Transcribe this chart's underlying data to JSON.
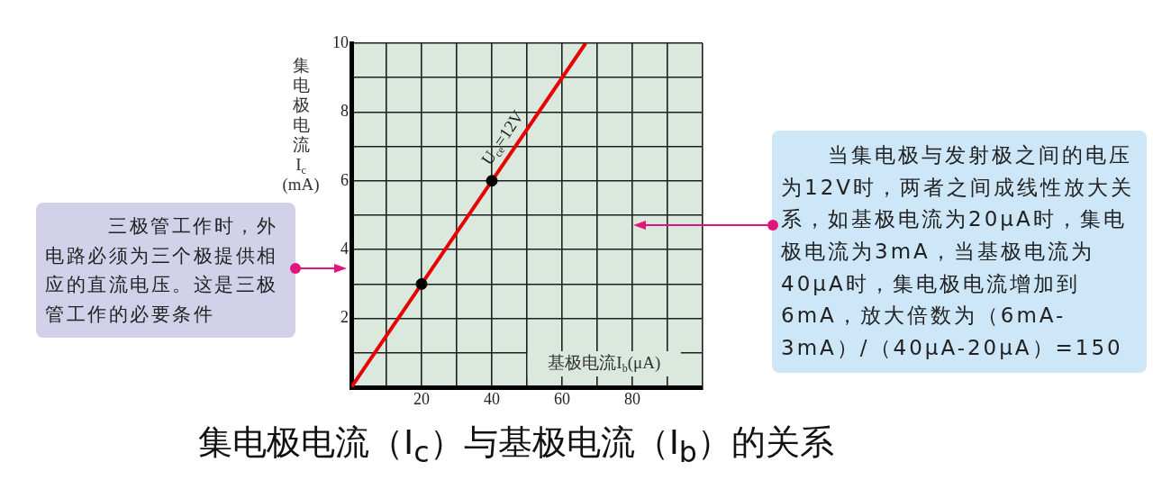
{
  "chart_data": {
    "type": "line",
    "title": "集电极电流（I$_{c}$）与基极电流（I$_{b}$）的关系",
    "xlabel": "基极电流I$_{b}$(μA)",
    "ylabel": "集电极电流I$_{c}$(mA)",
    "xlim": [
      0,
      100
    ],
    "ylim": [
      0,
      10
    ],
    "xticks": [
      {
        "value": 0,
        "label": null
      },
      {
        "value": 10,
        "label": null
      },
      20,
      {
        "value": 30,
        "label": null
      },
      40,
      {
        "value": 50,
        "label": null
      },
      60,
      {
        "value": 70,
        "label": null
      },
      80,
      {
        "value": 90,
        "label": null
      },
      {
        "value": 100,
        "label": null
      }
    ],
    "yticks": [
      {
        "value": 0,
        "label": null
      },
      {
        "value": 1,
        "label": null
      },
      2,
      {
        "value": 3,
        "label": null
      },
      4,
      {
        "value": 5,
        "label": null
      },
      6,
      {
        "value": 7,
        "label": null
      },
      8,
      {
        "value": 9,
        "label": null
      },
      10
    ],
    "grid": true,
    "series": [
      {
        "name": "U$_{ce}$=12V",
        "type": "line",
        "color": "#e60000",
        "x": [
          0,
          66.7
        ],
        "values": [
          0,
          10
        ],
        "marker": "none"
      },
      {
        "type": "scatter",
        "color": "#000000",
        "x": [
          20,
          40
        ],
        "values": [
          3,
          6
        ],
        "marker": "circle"
      }
    ],
    "annotations": [
      "三极管工作时，外电路必须为三个极提供相应的直流电压。这是三极管工作的必要条件",
      "当集电极与发射极之间的电压为12V时，两者之间成线性放大关系，如基极电流为20μA时，集电极电流为3mA，当基极电流为40μA时，集电极电流增加到6mA，放大倍数为（6mA-3mA）/（40μA-20μA）=150"
    ]
  }
}
